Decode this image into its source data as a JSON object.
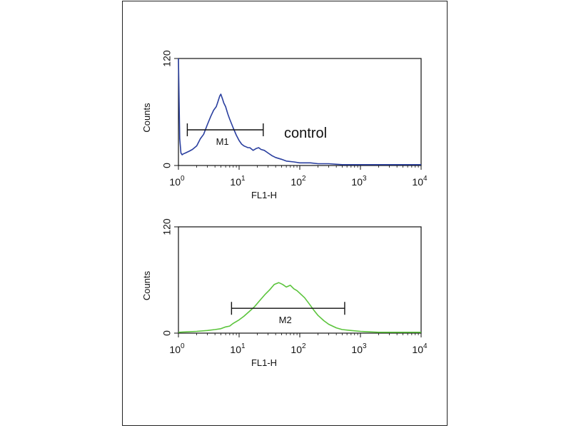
{
  "chart_data": [
    {
      "type": "line",
      "panel": "top",
      "x_scale": "log",
      "xlim": [
        1,
        10000
      ],
      "ylim": [
        0,
        120
      ],
      "xlabel": "FL1-H",
      "ylabel": "Counts",
      "y_ticks": [
        "0",
        "120"
      ],
      "x_tick_bases": [
        "10",
        "10",
        "10",
        "10",
        "10"
      ],
      "x_tick_exps": [
        "0",
        "1",
        "2",
        "3",
        "4"
      ],
      "color": "#2a3f9f",
      "annotation": "control",
      "gate": {
        "label": "M1",
        "from": 1.4,
        "to": 25,
        "y": 40
      },
      "series": [
        {
          "x": [
            1.0,
            1.05,
            1.1,
            1.15,
            1.2,
            1.3,
            1.5,
            1.7,
            2.0,
            2.3,
            2.6,
            3.0,
            3.4,
            3.8,
            4.2,
            4.5,
            4.8,
            5.0,
            5.3,
            5.6,
            6.0,
            6.5,
            7.0,
            8.0,
            9.0,
            10,
            11,
            12,
            13,
            14,
            15,
            17,
            19,
            21,
            23,
            26,
            30,
            35,
            40,
            50,
            60,
            80,
            100,
            150,
            200,
            300,
            500,
            1000,
            3000,
            10000
          ],
          "y": [
            120,
            30,
            14,
            12,
            13,
            14,
            16,
            18,
            22,
            30,
            35,
            46,
            55,
            62,
            66,
            72,
            78,
            80,
            75,
            70,
            66,
            58,
            52,
            42,
            34,
            28,
            24,
            22,
            21,
            20,
            20,
            17,
            19,
            20,
            18,
            17,
            14,
            11,
            9,
            7,
            5,
            4,
            3,
            3,
            2,
            2,
            1,
            1,
            1,
            1
          ]
        }
      ]
    },
    {
      "type": "line",
      "panel": "bottom",
      "x_scale": "log",
      "xlim": [
        1,
        10000
      ],
      "ylim": [
        0,
        120
      ],
      "xlabel": "FL1-H",
      "ylabel": "Counts",
      "y_ticks": [
        "0",
        "120"
      ],
      "x_tick_bases": [
        "10",
        "10",
        "10",
        "10",
        "10"
      ],
      "x_tick_exps": [
        "0",
        "1",
        "2",
        "3",
        "4"
      ],
      "color": "#5bc43c",
      "annotation": "",
      "gate": {
        "label": "M2",
        "from": 7.5,
        "to": 550,
        "y": 28
      },
      "series": [
        {
          "x": [
            1.0,
            2.0,
            3.0,
            4.0,
            5.0,
            6.0,
            7.0,
            8.0,
            10,
            12,
            15,
            18,
            22,
            27,
            32,
            38,
            45,
            52,
            60,
            70,
            80,
            90,
            100,
            120,
            140,
            170,
            200,
            250,
            300,
            400,
            500,
            700,
            1000,
            2000,
            5000,
            10000
          ],
          "y": [
            1,
            2,
            3,
            4,
            5,
            7,
            8,
            11,
            15,
            19,
            25,
            30,
            37,
            44,
            49,
            55,
            57,
            55,
            52,
            54,
            50,
            48,
            45,
            40,
            34,
            26,
            20,
            14,
            10,
            6,
            4,
            3,
            2,
            1,
            1,
            1
          ]
        }
      ]
    }
  ]
}
